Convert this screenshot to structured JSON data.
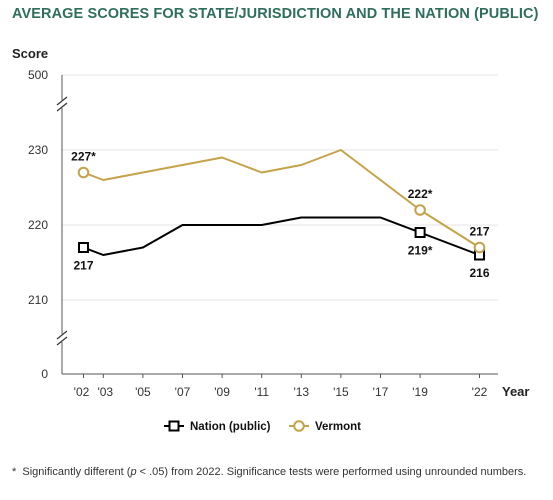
{
  "chart_data": {
    "type": "line",
    "title": "AVERAGE SCORES FOR STATE/JURISDICTION AND THE NATION (PUBLIC)",
    "ylabel": "Score",
    "xlabel": "Year",
    "x": [
      "'02",
      "'03",
      "'05",
      "'07",
      "'09",
      "'11",
      "'13",
      "'15",
      "'17",
      "'19",
      "'22"
    ],
    "years": [
      2002,
      2003,
      2005,
      2007,
      2009,
      2011,
      2013,
      2015,
      2017,
      2019,
      2022
    ],
    "y_ticks": [
      "0",
      "210",
      "220",
      "230",
      "500"
    ],
    "ylim_visible": [
      205,
      235
    ],
    "axis_breaks": true,
    "grid": true,
    "legend_position": "bottom-center",
    "series": [
      {
        "name": "Nation (public)",
        "color": "#000000",
        "marker": "square",
        "values": [
          217,
          216,
          217,
          220,
          220,
          220,
          221,
          221,
          221,
          219,
          216
        ],
        "marked_points": [
          0,
          9,
          10
        ]
      },
      {
        "name": "Vermont",
        "color": "#c4a34a",
        "marker": "circle",
        "values": [
          227,
          226,
          227,
          228,
          229,
          227,
          228,
          230,
          226,
          222,
          217
        ],
        "marked_points": [
          0,
          9,
          10
        ]
      }
    ],
    "annotations": [
      {
        "series": 1,
        "point": 0,
        "text": "227*",
        "pos": "above"
      },
      {
        "series": 1,
        "point": 9,
        "text": "222*",
        "pos": "above"
      },
      {
        "series": 1,
        "point": 10,
        "text": "217",
        "pos": "above"
      },
      {
        "series": 0,
        "point": 0,
        "text": "217",
        "pos": "below"
      },
      {
        "series": 0,
        "point": 9,
        "text": "219*",
        "pos": "below"
      },
      {
        "series": 0,
        "point": 10,
        "text": "216",
        "pos": "below"
      }
    ]
  },
  "footnote": {
    "marker": "*",
    "text_before": "Significantly different (",
    "p_symbol": "p",
    "text_after": " < .05) from 2022. Significance tests were performed using unrounded numbers."
  }
}
